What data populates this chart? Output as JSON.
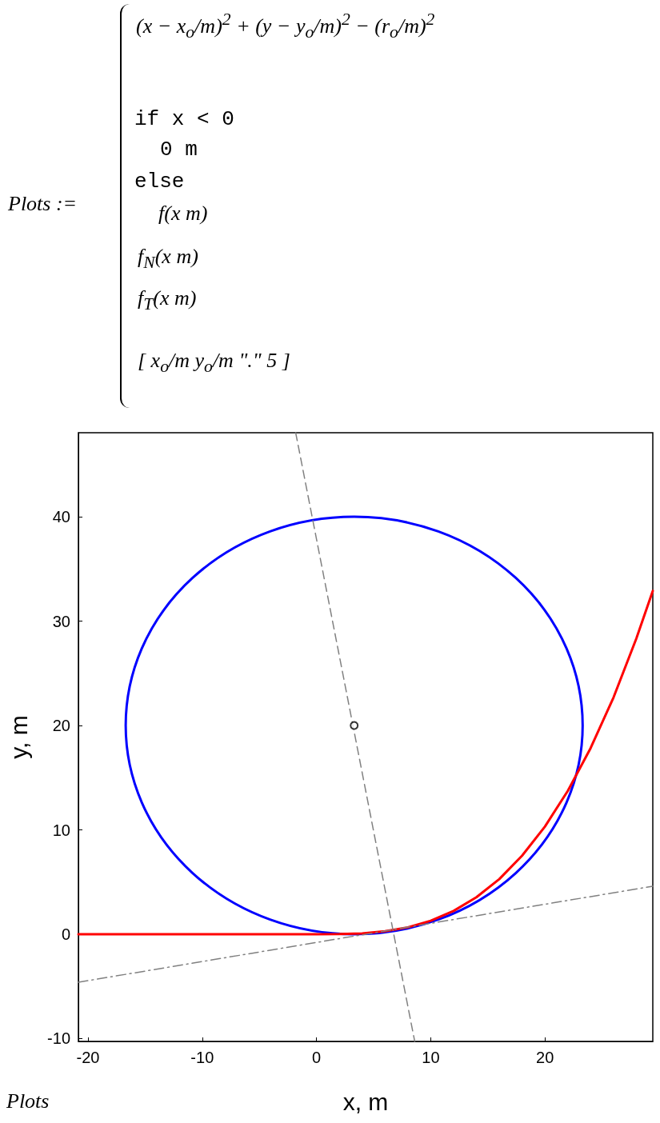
{
  "chart_data": {
    "type": "line",
    "xlabel": "x, m",
    "ylabel": "y, m",
    "annotations": [
      "Plots :=",
      "(x − x$_{o}$/m)$^{2}$ + (y − y$_{o}$/m)$^{2}$ − (r$_{o}$/m)$^{2}$",
      "if  x < 0",
      "0 m",
      "else",
      "f(x m)",
      "f$_{N}$(x m)",
      "f$_{T}$(x m)",
      "[ x$_{o}$/m  y$_{o}$/m  \".\"  5 ]",
      "Plots"
    ],
    "xlim": [
      -20.84,
      29.44
    ],
    "xticks": [
      -20,
      -10,
      0,
      10,
      20
    ],
    "ylim": [
      -10.27,
      48.05
    ],
    "yticks": [
      -10,
      0,
      10,
      20,
      30,
      40
    ],
    "grid": false,
    "marker": "none",
    "series": [
      {
        "color": "#ff0000",
        "line_style": "solid",
        "x": [
          -20.84,
          0,
          2,
          4,
          6,
          8,
          10,
          12,
          14,
          16,
          18,
          20,
          22,
          24,
          26,
          28,
          29.44
        ],
        "values": [
          0,
          0,
          0.01,
          0.08,
          0.28,
          0.66,
          1.29,
          2.23,
          3.54,
          5.28,
          7.53,
          10.32,
          13.74,
          17.84,
          22.68,
          28.33,
          32.9
        ]
      },
      {
        "color": "#808080",
        "line_style": "dashed",
        "x": [
          -1.82,
          8.6
        ],
        "values": [
          48.05,
          -10.27
        ]
      },
      {
        "color": "#808080",
        "line_style": "dashdot",
        "x": [
          -20.84,
          29.44
        ],
        "values": [
          -4.6,
          4.6
        ]
      },
      {
        "type": "scatter",
        "color": "#000000",
        "marker": "circle",
        "x": [
          3.3
        ],
        "values": [
          20
        ]
      }
    ]
  }
}
